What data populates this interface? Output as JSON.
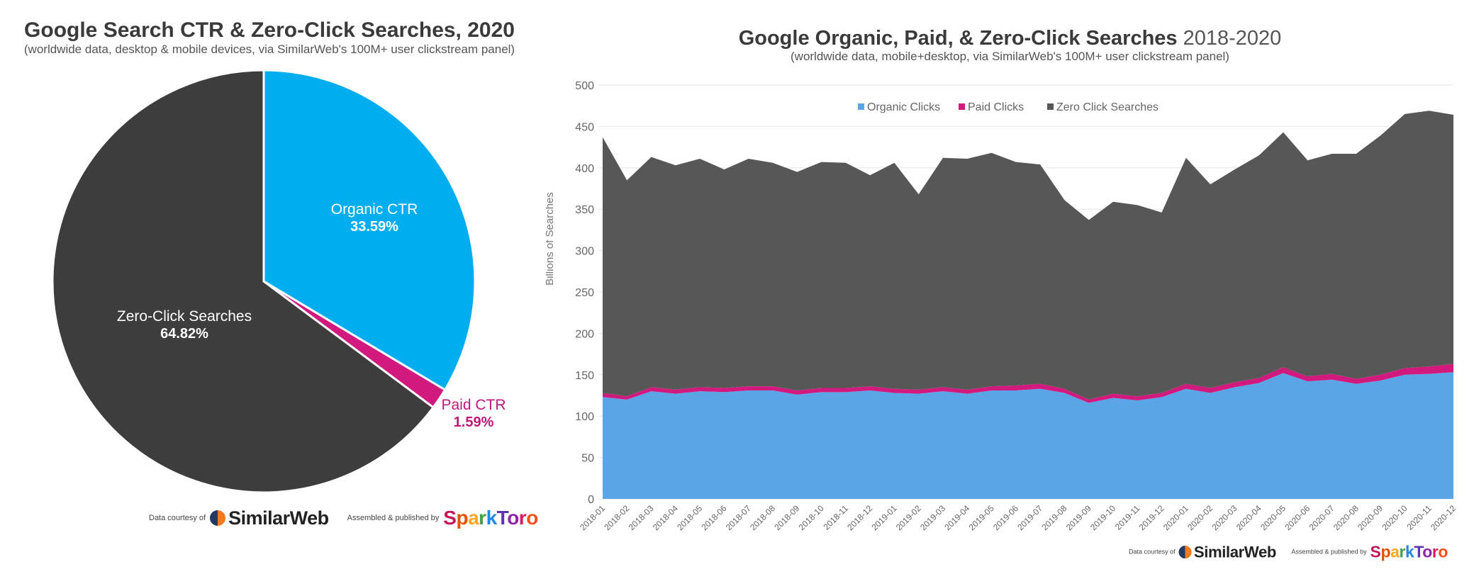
{
  "left": {
    "title": "Google Search CTR & Zero-Click Searches, 2020",
    "subtitle": "(worldwide data, desktop & mobile devices, via SimilarWeb's 100M+ user clickstream panel)",
    "credits": {
      "data_courtesy": "Data courtesy of",
      "similarweb": "SimilarWeb",
      "assembled": "Assembled & published by",
      "sparktoro": "SparkToro"
    }
  },
  "right": {
    "title_bold": "Google Organic, Paid, & Zero-Click Searches",
    "title_light": "2018-2020",
    "subtitle": "(worldwide data, mobile+desktop, via SimilarWeb's 100M+ user clickstream panel)",
    "credits": {
      "data_courtesy": "Data courtesy of",
      "similarweb": "SimilarWeb",
      "assembled": "Assembled & published by",
      "sparktoro": "SparkToro"
    }
  },
  "chart_data": [
    {
      "type": "pie",
      "title": "Google Search CTR & Zero-Click Searches, 2020",
      "slices": [
        {
          "label": "Organic CTR",
          "value": 33.59,
          "value_label": "33.59%",
          "color": "#00adef"
        },
        {
          "label": "Paid CTR",
          "value": 1.59,
          "value_label": "1.59%",
          "color": "#d1197e"
        },
        {
          "label": "Zero-Click Searches",
          "value": 64.82,
          "value_label": "64.82%",
          "color": "#3d3d3d"
        }
      ]
    },
    {
      "type": "area",
      "stacked": true,
      "title": "Google Organic, Paid, & Zero-Click Searches 2018-2020",
      "ylabel": "Billions of Searches",
      "xlabel": "",
      "ylim": [
        0,
        500
      ],
      "yticks": [
        0,
        50,
        100,
        150,
        200,
        250,
        300,
        350,
        400,
        450,
        500
      ],
      "grid": true,
      "legend_position": "top-center",
      "categories": [
        "2018-01",
        "2018-02",
        "2018-03",
        "2018-04",
        "2018-05",
        "2018-06",
        "2018-07",
        "2018-08",
        "2018-09",
        "2018-10",
        "2018-11",
        "2018-12",
        "2019-01",
        "2019-02",
        "2019-03",
        "2019-04",
        "2019-05",
        "2019-06",
        "2019-07",
        "2019-08",
        "2019-09",
        "2019-10",
        "2019-11",
        "2019-12",
        "2020-01",
        "2020-02",
        "2020-03",
        "2020-04",
        "2020-05",
        "2020-06",
        "2020-07",
        "2020-08",
        "2020-09",
        "2020-10",
        "2020-11",
        "2020-12"
      ],
      "series": [
        {
          "name": "Organic Clicks",
          "color": "#5ba4e6",
          "values": [
            123,
            120,
            130,
            127,
            130,
            129,
            131,
            131,
            126,
            129,
            129,
            131,
            128,
            127,
            130,
            127,
            131,
            131,
            133,
            128,
            116,
            122,
            119,
            123,
            133,
            128,
            135,
            140,
            152,
            142,
            144,
            139,
            143,
            150,
            151,
            153
          ]
        },
        {
          "name": "Paid Clicks",
          "color": "#d1197e",
          "values": [
            5,
            4,
            5,
            5,
            5,
            5,
            5,
            5,
            5,
            5,
            5,
            5,
            5,
            5,
            5,
            5,
            5,
            6,
            6,
            5,
            4,
            5,
            5,
            5,
            6,
            6,
            6,
            6,
            7,
            6,
            7,
            6,
            7,
            8,
            9,
            10
          ]
        },
        {
          "name": "Zero Click Searches",
          "color": "#575757",
          "values": [
            309,
            261,
            278,
            271,
            276,
            264,
            275,
            270,
            264,
            273,
            272,
            255,
            273,
            236,
            277,
            279,
            282,
            270,
            265,
            228,
            217,
            232,
            231,
            218,
            273,
            246,
            257,
            269,
            284,
            261,
            266,
            272,
            289,
            307,
            309,
            301
          ]
        }
      ]
    }
  ]
}
